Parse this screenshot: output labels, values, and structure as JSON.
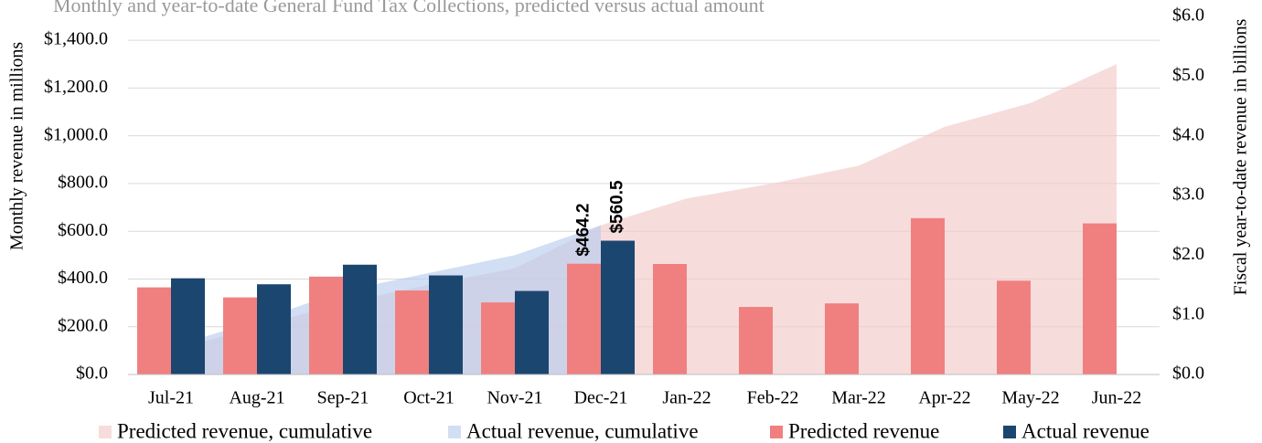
{
  "chart_data": {
    "type": "bar",
    "title": "Monthly and year-to-date General Fund Tax Collections, predicted versus actual amount",
    "y_label": "Monthly revenue in millions",
    "y2_label": "Fiscal year-to-date revenue in billions",
    "categories": [
      "Jul-21",
      "Aug-21",
      "Sep-21",
      "Oct-21",
      "Nov-21",
      "Dec-21",
      "Jan-22",
      "Feb-22",
      "Mar-22",
      "Apr-22",
      "May-22",
      "Jun-22"
    ],
    "ylim": [
      0,
      1500
    ],
    "yticks": [
      {
        "value": 0,
        "label": "$0.0"
      },
      {
        "value": 200,
        "label": "$200.0"
      },
      {
        "value": 400,
        "label": "$400.0"
      },
      {
        "value": 600,
        "label": "$600.0"
      },
      {
        "value": 800,
        "label": "$800.0"
      },
      {
        "value": 1000,
        "label": "$1,000.0"
      },
      {
        "value": 1200,
        "label": "$1,200.0"
      },
      {
        "value": 1400,
        "label": "$1,400.0"
      }
    ],
    "y2lim": [
      0,
      6
    ],
    "y2ticks": [
      {
        "value": 0,
        "label": "$0.0"
      },
      {
        "value": 1,
        "label": "$1.0"
      },
      {
        "value": 2,
        "label": "$2.0"
      },
      {
        "value": 3,
        "label": "$3.0"
      },
      {
        "value": 4,
        "label": "$4.0"
      },
      {
        "value": 5,
        "label": "$5.0"
      },
      {
        "value": 6,
        "label": "$6.0"
      }
    ],
    "grid": true,
    "legend": "bottom",
    "series": [
      {
        "name": "Predicted revenue, cumulative",
        "type": "area",
        "axis": "y2",
        "color": "#f2c9c9",
        "values": [
          0.4,
          0.8,
          1.2,
          1.5,
          1.78,
          2.5,
          2.95,
          3.2,
          3.5,
          4.15,
          4.55,
          5.2
        ]
      },
      {
        "name": "Actual revenue, cumulative",
        "type": "area",
        "axis": "y2",
        "color": "#b9cdee",
        "values": [
          0.46,
          0.9,
          1.4,
          1.7,
          2.0,
          2.5,
          null,
          null,
          null,
          null,
          null,
          null
        ]
      },
      {
        "name": "Predicted revenue",
        "type": "bar",
        "color": "#f08080",
        "values": [
          365,
          323,
          410,
          352,
          302,
          464.2,
          463,
          283,
          298,
          655,
          393,
          633
        ],
        "value_labels": [
          null,
          null,
          null,
          null,
          null,
          "$464.2",
          null,
          null,
          null,
          null,
          null,
          null
        ]
      },
      {
        "name": "Actual revenue",
        "type": "bar",
        "color": "#1b4670",
        "values": [
          403,
          378,
          460,
          415,
          350,
          560.5,
          null,
          null,
          null,
          null,
          null,
          null
        ],
        "value_labels": [
          null,
          null,
          null,
          null,
          null,
          "$560.5",
          null,
          null,
          null,
          null,
          null,
          null
        ]
      }
    ]
  }
}
